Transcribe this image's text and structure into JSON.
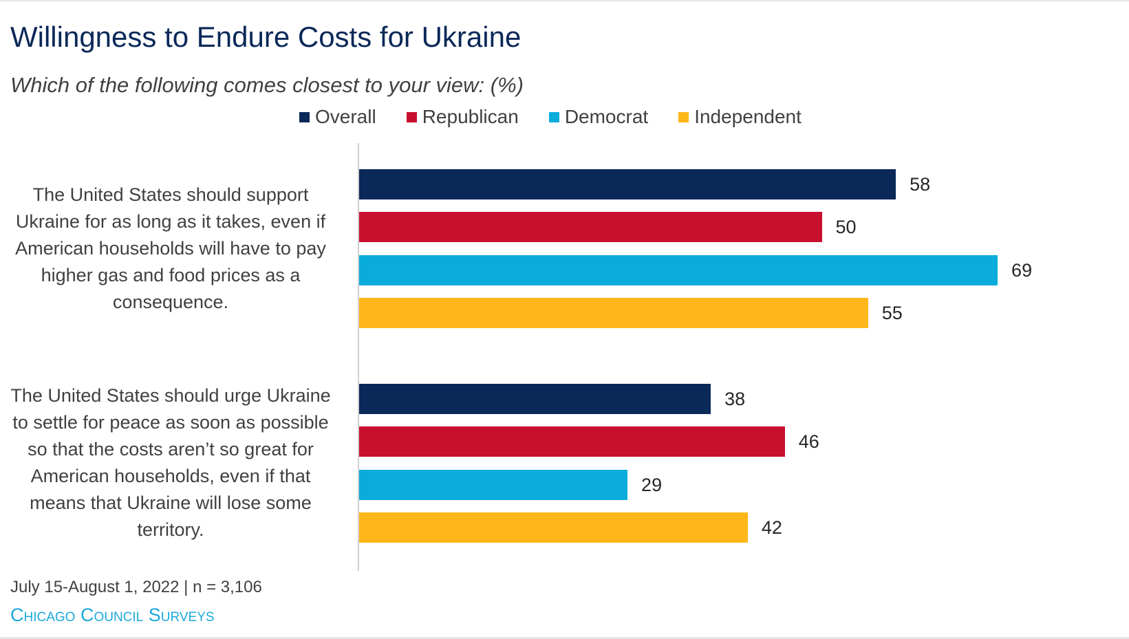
{
  "header": {
    "title": "Willingness to Endure Costs for Ukraine",
    "subtitle": "Which of the following comes closest to your view:  (%)"
  },
  "footer": {
    "note": "July 15-August 1, 2022 | n = 3,106",
    "brand": "Chicago Council Surveys"
  },
  "colors": {
    "Overall": "#0a2858",
    "Republican": "#c8102e",
    "Democrat": "#0aacdc",
    "Independent": "#fdb71a"
  },
  "chart_data": {
    "type": "bar",
    "orientation": "horizontal",
    "title": "Willingness to Endure Costs for Ukraine",
    "subtitle": "Which of the following comes closest to your view:  (%)",
    "legend_position": "top",
    "xlim": [
      0,
      100
    ],
    "grid": false,
    "categories": [
      "The United States should support Ukraine for as long as it takes, even if American households will have to pay higher gas and food prices as a consequence.",
      "The United States should urge Ukraine to settle for peace as soon as possible so that the costs aren’t so great for American households, even if that means that Ukraine will lose some territory."
    ],
    "series": [
      {
        "name": "Overall",
        "color": "#0a2858",
        "values": [
          58,
          38
        ]
      },
      {
        "name": "Republican",
        "color": "#c8102e",
        "values": [
          50,
          46
        ]
      },
      {
        "name": "Democrat",
        "color": "#0aacdc",
        "values": [
          69,
          29
        ]
      },
      {
        "name": "Independent",
        "color": "#fdb71a",
        "values": [
          55,
          42
        ]
      }
    ]
  }
}
